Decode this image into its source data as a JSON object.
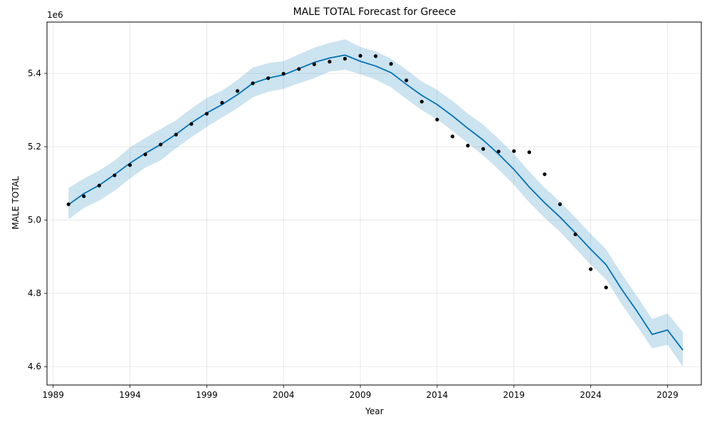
{
  "chart_data": {
    "type": "line",
    "title": "MALE TOTAL Forecast for Greece",
    "xlabel": "Year",
    "ylabel": "MALE TOTAL",
    "y_offset_label": "1e6",
    "xlim": [
      1988.6,
      2031.2
    ],
    "ylim": [
      4.55,
      5.54
    ],
    "x_ticks": [
      1989,
      1994,
      1999,
      2004,
      2009,
      2014,
      2019,
      2024,
      2029
    ],
    "x_tick_labels": [
      "1989",
      "1994",
      "1999",
      "2004",
      "2009",
      "2014",
      "2019",
      "2024",
      "2029"
    ],
    "y_ticks": [
      4.6,
      4.8,
      5.0,
      5.2,
      5.4
    ],
    "y_tick_labels": [
      "4.6",
      "4.8",
      "5.0",
      "5.2",
      "5.4"
    ],
    "grid": true,
    "colors": {
      "forecast": "#0072B2",
      "interval": "#0072B2",
      "observed": "#000000"
    },
    "observed": {
      "x": [
        1990,
        1991,
        1992,
        1993,
        1994,
        1995,
        1996,
        1997,
        1998,
        1999,
        2000,
        2001,
        2002,
        2003,
        2004,
        2005,
        2006,
        2007,
        2008,
        2009,
        2010,
        2011,
        2012,
        2013,
        2014,
        2015,
        2016,
        2017,
        2018,
        2019,
        2020,
        2021,
        2022,
        2023,
        2024,
        2025
      ],
      "y": [
        5.043,
        5.065,
        5.094,
        5.122,
        5.15,
        5.179,
        5.206,
        5.233,
        5.262,
        5.29,
        5.32,
        5.352,
        5.373,
        5.387,
        5.399,
        5.412,
        5.425,
        5.432,
        5.44,
        5.448,
        5.447,
        5.426,
        5.381,
        5.323,
        5.274,
        5.228,
        5.203,
        5.194,
        5.187,
        5.188,
        5.185,
        5.125,
        5.043,
        4.961,
        4.866,
        4.816
      ]
    },
    "forecast": {
      "x": [
        1990,
        1991,
        1992,
        1993,
        1994,
        1995,
        1996,
        1997,
        1998,
        1999,
        2000,
        2001,
        2002,
        2003,
        2004,
        2005,
        2006,
        2007,
        2008,
        2009,
        2010,
        2011,
        2012,
        2013,
        2014,
        2015,
        2016,
        2017,
        2018,
        2019,
        2020,
        2021,
        2022,
        2023,
        2024,
        2025,
        2026,
        2027,
        2028,
        2029,
        2030
      ],
      "yhat": [
        5.042,
        5.072,
        5.095,
        5.124,
        5.155,
        5.182,
        5.206,
        5.234,
        5.265,
        5.292,
        5.315,
        5.342,
        5.373,
        5.387,
        5.396,
        5.413,
        5.43,
        5.442,
        5.45,
        5.433,
        5.42,
        5.402,
        5.37,
        5.34,
        5.315,
        5.284,
        5.25,
        5.218,
        5.18,
        5.138,
        5.09,
        5.047,
        5.008,
        4.965,
        4.92,
        4.878,
        4.812,
        4.752,
        4.688,
        4.7,
        4.645
      ],
      "lower": [
        5.002,
        5.033,
        5.053,
        5.08,
        5.113,
        5.143,
        5.163,
        5.196,
        5.226,
        5.254,
        5.28,
        5.305,
        5.335,
        5.35,
        5.358,
        5.373,
        5.387,
        5.405,
        5.41,
        5.398,
        5.383,
        5.362,
        5.33,
        5.3,
        5.275,
        5.243,
        5.21,
        5.176,
        5.138,
        5.096,
        5.048,
        5.006,
        4.968,
        4.923,
        4.878,
        4.838,
        4.771,
        4.712,
        4.65,
        4.66,
        4.6
      ],
      "upper": [
        5.087,
        5.113,
        5.135,
        5.162,
        5.198,
        5.224,
        5.248,
        5.272,
        5.304,
        5.333,
        5.353,
        5.382,
        5.416,
        5.428,
        5.433,
        5.452,
        5.47,
        5.483,
        5.493,
        5.472,
        5.46,
        5.44,
        5.41,
        5.378,
        5.355,
        5.325,
        5.29,
        5.26,
        5.222,
        5.18,
        5.132,
        5.088,
        5.05,
        5.007,
        4.962,
        4.92,
        4.854,
        4.793,
        4.73,
        4.745,
        4.694
      ]
    }
  }
}
